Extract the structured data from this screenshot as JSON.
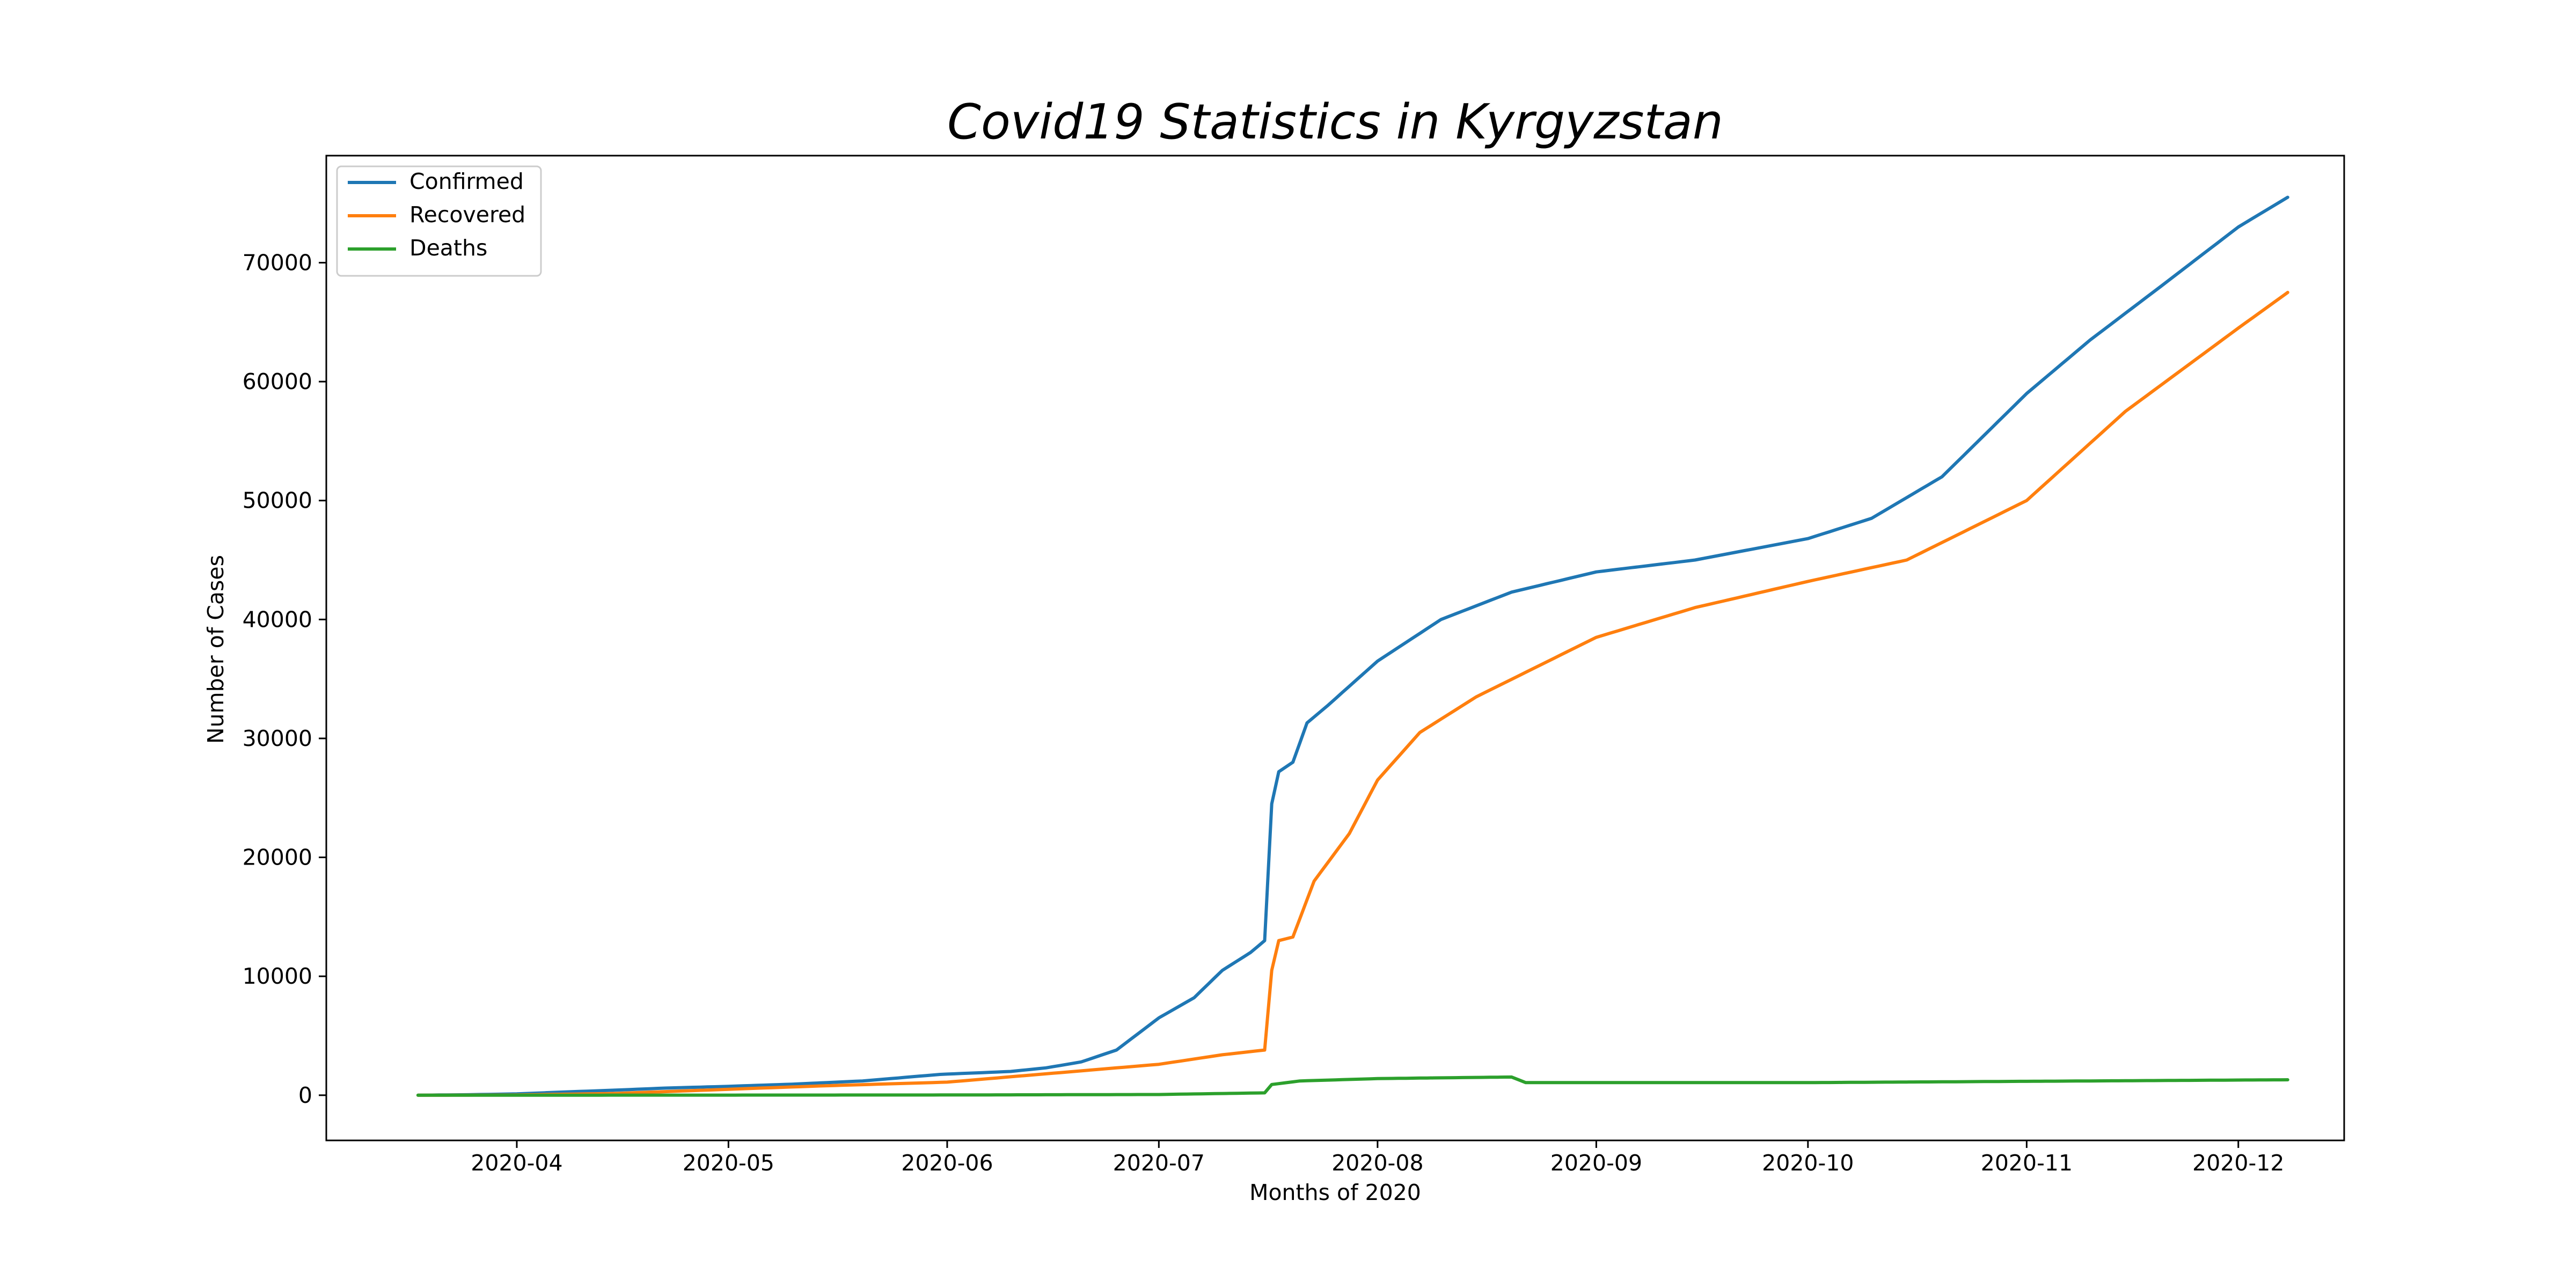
{
  "chart_data": {
    "type": "line",
    "title": "Covid19 Statistics in Kyrgyzstan",
    "xlabel": "Months of 2020",
    "ylabel": "Number of Cases",
    "x_ticks": [
      "2020-04",
      "2020-05",
      "2020-06",
      "2020-07",
      "2020-08",
      "2020-09",
      "2020-10",
      "2020-11",
      "2020-12"
    ],
    "y_ticks": [
      0,
      10000,
      20000,
      30000,
      40000,
      50000,
      60000,
      70000
    ],
    "xlim": [
      "2020-03-05",
      "2020-12-16"
    ],
    "ylim": [
      -3800,
      79000
    ],
    "grid": false,
    "legend_position": "top-left",
    "series": [
      {
        "name": "Confirmed",
        "color": "#1f77b4",
        "points": [
          [
            "2020-03-18",
            3
          ],
          [
            "2020-03-25",
            42
          ],
          [
            "2020-04-01",
            111
          ],
          [
            "2020-04-08",
            280
          ],
          [
            "2020-04-15",
            430
          ],
          [
            "2020-04-22",
            600
          ],
          [
            "2020-05-01",
            746
          ],
          [
            "2020-05-10",
            931
          ],
          [
            "2020-05-20",
            1200
          ],
          [
            "2020-05-31",
            1750
          ],
          [
            "2020-06-10",
            2000
          ],
          [
            "2020-06-15",
            2300
          ],
          [
            "2020-06-20",
            2800
          ],
          [
            "2020-06-25",
            3800
          ],
          [
            "2020-07-01",
            6500
          ],
          [
            "2020-07-06",
            8200
          ],
          [
            "2020-07-10",
            10500
          ],
          [
            "2020-07-14",
            12000
          ],
          [
            "2020-07-16",
            13000
          ],
          [
            "2020-07-17",
            24500
          ],
          [
            "2020-07-18",
            27200
          ],
          [
            "2020-07-20",
            28000
          ],
          [
            "2020-07-22",
            31300
          ],
          [
            "2020-07-25",
            32800
          ],
          [
            "2020-08-01",
            36500
          ],
          [
            "2020-08-10",
            40000
          ],
          [
            "2020-08-20",
            42300
          ],
          [
            "2020-09-01",
            44000
          ],
          [
            "2020-09-15",
            45000
          ],
          [
            "2020-10-01",
            46800
          ],
          [
            "2020-10-10",
            48500
          ],
          [
            "2020-10-20",
            52000
          ],
          [
            "2020-11-01",
            59000
          ],
          [
            "2020-11-10",
            63500
          ],
          [
            "2020-11-20",
            68000
          ],
          [
            "2020-12-01",
            73000
          ],
          [
            "2020-12-08",
            75500
          ]
        ]
      },
      {
        "name": "Recovered",
        "color": "#ff7f0e",
        "points": [
          [
            "2020-03-18",
            0
          ],
          [
            "2020-04-01",
            20
          ],
          [
            "2020-04-15",
            150
          ],
          [
            "2020-05-01",
            500
          ],
          [
            "2020-05-15",
            800
          ],
          [
            "2020-06-01",
            1100
          ],
          [
            "2020-06-15",
            1800
          ],
          [
            "2020-07-01",
            2600
          ],
          [
            "2020-07-10",
            3400
          ],
          [
            "2020-07-16",
            3800
          ],
          [
            "2020-07-17",
            10500
          ],
          [
            "2020-07-18",
            13000
          ],
          [
            "2020-07-20",
            13300
          ],
          [
            "2020-07-23",
            18000
          ],
          [
            "2020-07-28",
            22000
          ],
          [
            "2020-08-01",
            26500
          ],
          [
            "2020-08-07",
            30500
          ],
          [
            "2020-08-15",
            33500
          ],
          [
            "2020-09-01",
            38500
          ],
          [
            "2020-09-15",
            41000
          ],
          [
            "2020-10-01",
            43200
          ],
          [
            "2020-10-15",
            45000
          ],
          [
            "2020-11-01",
            50000
          ],
          [
            "2020-11-15",
            57500
          ],
          [
            "2020-12-01",
            64500
          ],
          [
            "2020-12-08",
            67500
          ]
        ]
      },
      {
        "name": "Deaths",
        "color": "#2ca02c",
        "points": [
          [
            "2020-03-18",
            0
          ],
          [
            "2020-05-01",
            10
          ],
          [
            "2020-06-01",
            20
          ],
          [
            "2020-07-01",
            60
          ],
          [
            "2020-07-16",
            200
          ],
          [
            "2020-07-17",
            900
          ],
          [
            "2020-07-21",
            1200
          ],
          [
            "2020-08-01",
            1400
          ],
          [
            "2020-08-20",
            1530
          ],
          [
            "2020-08-22",
            1060
          ],
          [
            "2020-10-01",
            1060
          ],
          [
            "2020-12-08",
            1300
          ]
        ]
      }
    ]
  }
}
